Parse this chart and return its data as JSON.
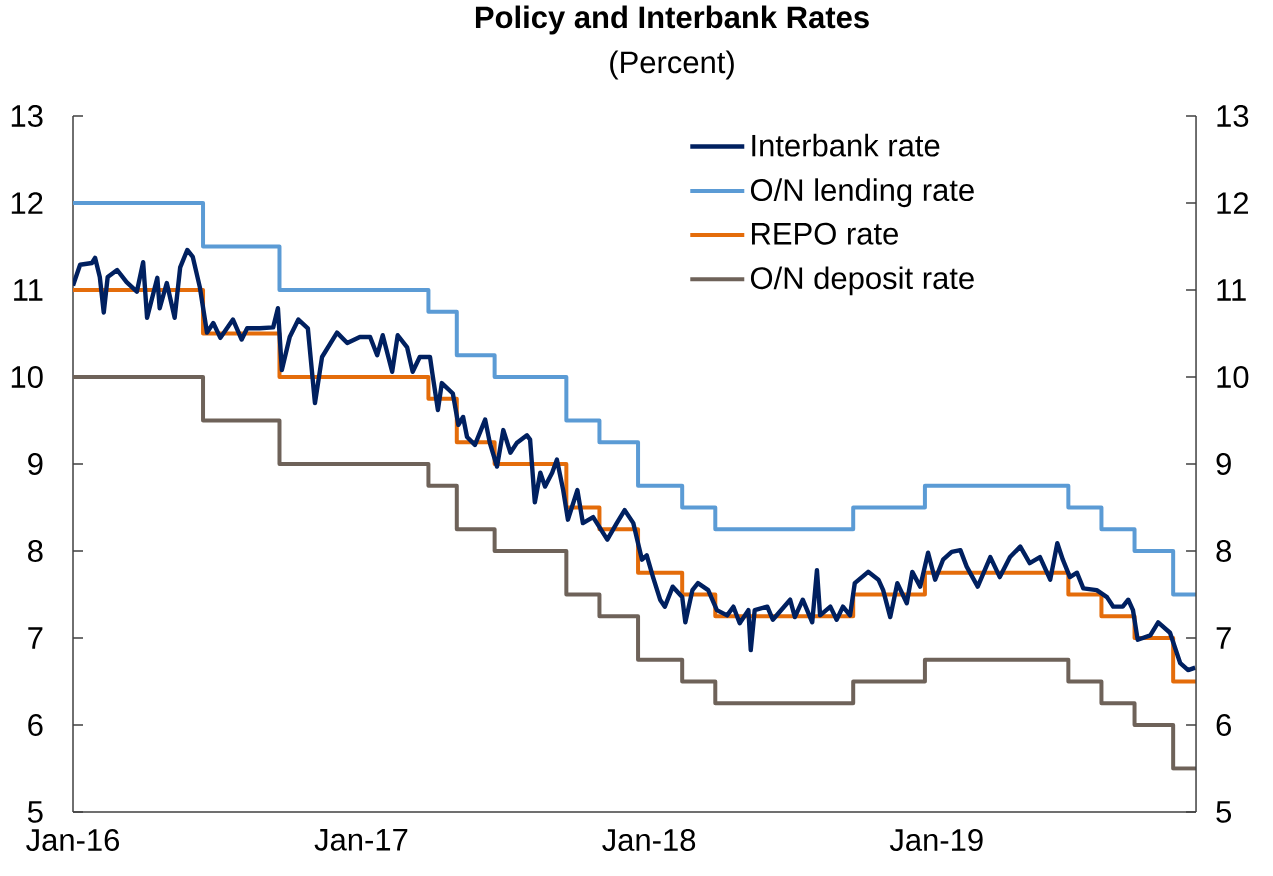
{
  "chart_data": {
    "type": "line",
    "title": "Policy and Interbank Rates",
    "subtitle": "(Percent)",
    "xlim": [
      "2016-01-01",
      "2019-11-26"
    ],
    "xticks": [
      {
        "value": "2016-01-01",
        "label": "Jan-16"
      },
      {
        "value": "2017-01-01",
        "label": "Jan-17"
      },
      {
        "value": "2018-01-01",
        "label": "Jan-18"
      },
      {
        "value": "2019-01-01",
        "label": "Jan-19"
      }
    ],
    "ylim": [
      5,
      13
    ],
    "yticks": [
      5,
      6,
      7,
      8,
      9,
      10,
      11,
      12,
      13
    ],
    "y2lim": [
      5,
      13
    ],
    "y2ticks": [
      5,
      6,
      7,
      8,
      9,
      10,
      11,
      12,
      13
    ],
    "legend": "top right",
    "x": [
      "2016-01-01",
      "2016-06-14",
      "2016-09-19",
      "2017-03-27",
      "2017-05-02",
      "2017-06-19",
      "2017-09-18",
      "2017-10-30",
      "2017-12-18",
      "2018-02-12",
      "2018-03-26",
      "2018-09-17",
      "2018-12-17",
      "2019-06-17",
      "2019-07-29",
      "2019-09-09",
      "2019-10-28",
      "2019-11-26"
    ],
    "series": [
      {
        "name": "Interbank rate",
        "color": "#002060",
        "x": [
          "2016-01-01",
          "2016-01-10",
          "2016-01-25",
          "2016-01-29",
          "2016-02-04",
          "2016-02-09",
          "2016-02-14",
          "2016-02-26",
          "2016-03-09",
          "2016-03-22",
          "2016-03-30",
          "2016-04-04",
          "2016-04-17",
          "2016-04-20",
          "2016-04-29",
          "2016-05-09",
          "2016-05-16",
          "2016-05-25",
          "2016-06-01",
          "2016-06-10",
          "2016-06-19",
          "2016-06-27",
          "2016-07-06",
          "2016-07-22",
          "2016-08-02",
          "2016-08-09",
          "2016-08-25",
          "2016-09-11",
          "2016-09-17",
          "2016-09-22",
          "2016-10-02",
          "2016-10-13",
          "2016-10-25",
          "2016-11-03",
          "2016-11-12",
          "2016-12-01",
          "2016-12-14",
          "2016-12-30",
          "2017-01-12",
          "2017-01-21",
          "2017-01-28",
          "2017-02-09",
          "2017-02-16",
          "2017-02-28",
          "2017-03-07",
          "2017-03-16",
          "2017-03-29",
          "2017-04-01",
          "2017-04-08",
          "2017-04-13",
          "2017-04-27",
          "2017-05-04",
          "2017-05-10",
          "2017-05-15",
          "2017-05-25",
          "2017-06-07",
          "2017-06-13",
          "2017-06-22",
          "2017-06-30",
          "2017-07-09",
          "2017-07-17",
          "2017-07-30",
          "2017-08-03",
          "2017-08-09",
          "2017-08-16",
          "2017-08-22",
          "2017-08-31",
          "2017-09-06",
          "2017-09-14",
          "2017-09-20",
          "2017-10-02",
          "2017-10-09",
          "2017-10-22",
          "2017-11-09",
          "2017-11-21",
          "2017-12-01",
          "2017-12-12",
          "2017-12-18",
          "2017-12-23",
          "2017-12-29",
          "2018-01-06",
          "2018-01-15",
          "2018-01-21",
          "2018-01-31",
          "2018-02-12",
          "2018-02-16",
          "2018-02-25",
          "2018-03-04",
          "2018-03-17",
          "2018-03-28",
          "2018-04-10",
          "2018-04-18",
          "2018-04-26",
          "2018-05-07",
          "2018-05-10",
          "2018-05-15",
          "2018-05-31",
          "2018-06-07",
          "2018-06-29",
          "2018-07-05",
          "2018-07-15",
          "2018-07-27",
          "2018-08-02",
          "2018-08-06",
          "2018-08-19",
          "2018-08-27",
          "2018-09-04",
          "2018-09-13",
          "2018-09-19",
          "2018-10-06",
          "2018-10-19",
          "2018-10-25",
          "2018-11-03",
          "2018-11-12",
          "2018-11-24",
          "2018-12-01",
          "2018-12-11",
          "2018-12-21",
          "2018-12-30",
          "2019-01-09",
          "2019-01-20",
          "2019-01-31",
          "2019-02-08",
          "2019-02-22",
          "2019-03-10",
          "2019-03-22",
          "2019-04-04",
          "2019-04-17",
          "2019-04-29",
          "2019-05-12",
          "2019-05-25",
          "2019-06-03",
          "2019-06-10",
          "2019-06-19",
          "2019-06-28",
          "2019-07-06",
          "2019-07-23",
          "2019-08-05",
          "2019-08-13",
          "2019-08-25",
          "2019-09-01",
          "2019-09-07",
          "2019-09-13",
          "2019-09-29",
          "2019-10-09",
          "2019-10-24",
          "2019-11-06",
          "2019-11-16",
          "2019-11-25"
        ],
        "values": [
          11.05,
          11.29,
          11.31,
          11.37,
          11.15,
          10.74,
          11.15,
          11.23,
          11.09,
          10.98,
          11.32,
          10.68,
          11.14,
          10.79,
          11.08,
          10.68,
          11.26,
          11.46,
          11.38,
          11.03,
          10.51,
          10.62,
          10.45,
          10.66,
          10.43,
          10.56,
          10.56,
          10.57,
          10.79,
          10.08,
          10.46,
          10.66,
          10.56,
          9.7,
          10.23,
          10.51,
          10.39,
          10.46,
          10.46,
          10.25,
          10.48,
          10.06,
          10.48,
          10.34,
          10.06,
          10.23,
          10.23,
          10.04,
          9.62,
          9.93,
          9.81,
          9.45,
          9.54,
          9.31,
          9.22,
          9.51,
          9.24,
          8.97,
          9.39,
          9.13,
          9.24,
          9.33,
          9.28,
          8.56,
          8.9,
          8.74,
          8.9,
          9.05,
          8.7,
          8.36,
          8.7,
          8.32,
          8.39,
          8.13,
          8.32,
          8.47,
          8.32,
          8.09,
          7.9,
          7.95,
          7.7,
          7.44,
          7.36,
          7.59,
          7.47,
          7.18,
          7.55,
          7.63,
          7.55,
          7.32,
          7.26,
          7.36,
          7.17,
          7.32,
          6.86,
          7.32,
          7.36,
          7.21,
          7.44,
          7.24,
          7.44,
          7.18,
          7.78,
          7.26,
          7.36,
          7.21,
          7.36,
          7.26,
          7.63,
          7.76,
          7.67,
          7.55,
          7.24,
          7.63,
          7.4,
          7.76,
          7.59,
          7.98,
          7.67,
          7.9,
          7.99,
          8.01,
          7.82,
          7.59,
          7.93,
          7.7,
          7.93,
          8.05,
          7.86,
          7.93,
          7.67,
          8.09,
          7.9,
          7.7,
          7.75,
          7.57,
          7.55,
          7.47,
          7.36,
          7.36,
          7.44,
          7.32,
          6.98,
          7.03,
          7.18,
          7.06,
          6.71,
          6.63,
          6.66
        ]
      },
      {
        "name": "O/N lending rate",
        "color": "#5b9bd5",
        "type": "step",
        "values": [
          12,
          11.5,
          11,
          10.75,
          10.25,
          10,
          9.5,
          9.25,
          8.75,
          8.5,
          8.25,
          8.5,
          8.75,
          8.5,
          8.25,
          8,
          7.5,
          7.5
        ]
      },
      {
        "name": "REPO rate",
        "color": "#e46c0a",
        "type": "step",
        "values": [
          11,
          10.5,
          10,
          9.75,
          9.25,
          9,
          8.5,
          8.25,
          7.75,
          7.5,
          7.25,
          7.5,
          7.75,
          7.5,
          7.25,
          7,
          6.5,
          6.5
        ]
      },
      {
        "name": "O/N deposit rate",
        "color": "#6e6259",
        "type": "step",
        "values": [
          10,
          9.5,
          9,
          8.75,
          8.25,
          8,
          7.5,
          7.25,
          6.75,
          6.5,
          6.25,
          6.5,
          6.75,
          6.5,
          6.25,
          6,
          5.5,
          5.5
        ]
      }
    ]
  }
}
